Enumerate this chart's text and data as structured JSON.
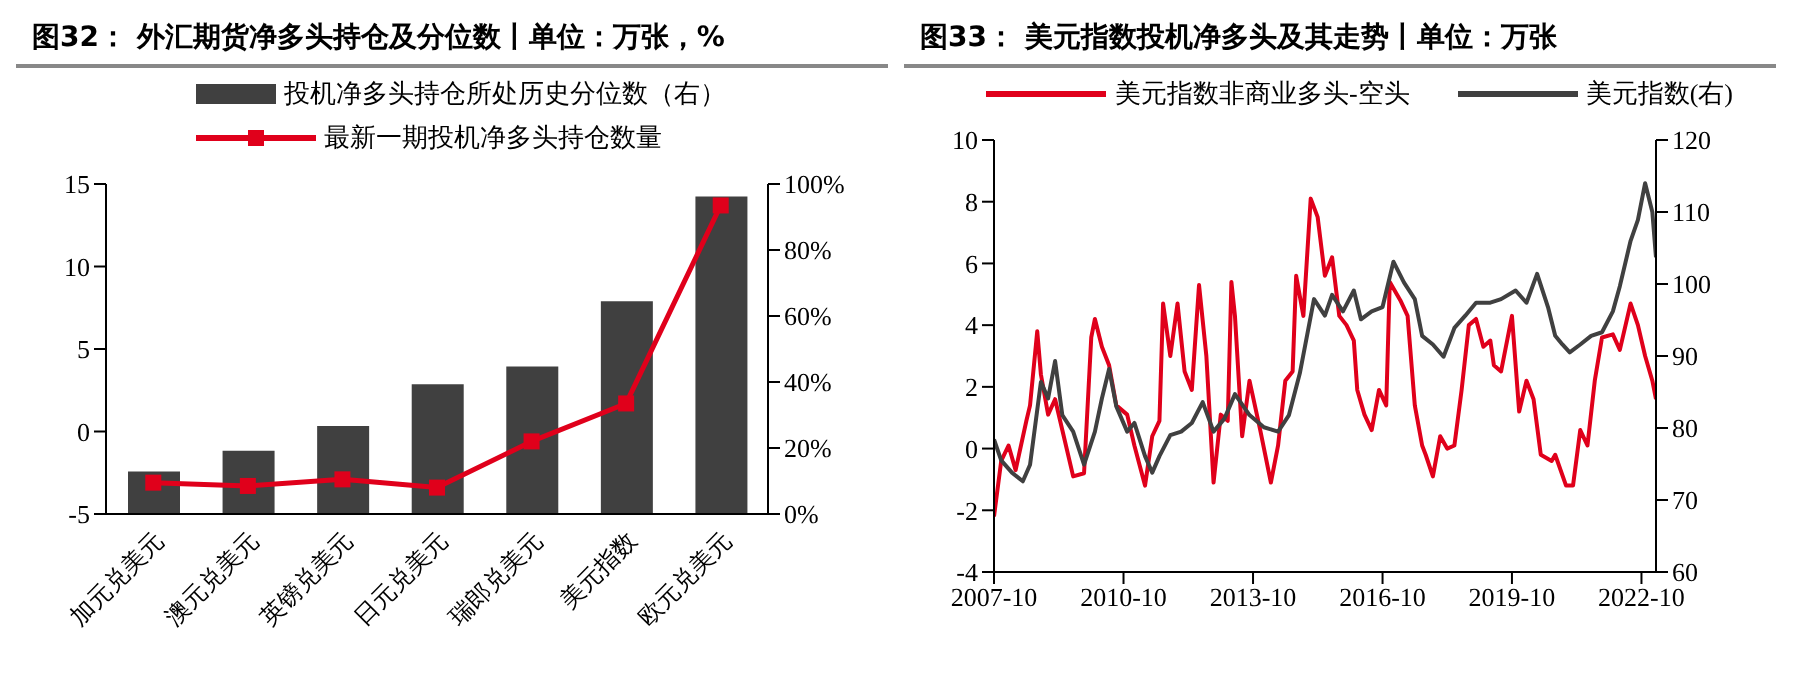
{
  "chart_data": [
    {
      "type": "bar",
      "title": "图32： 外汇期货净多头持仓及分位数丨单位：万张，%",
      "categories": [
        "加元兑美元",
        "澳元兑美元",
        "英镑兑美元",
        "日元兑美元",
        "瑞郎兑美元",
        "美元指数",
        "欧元兑美元"
      ],
      "series": [
        {
          "name": "投机净多头持仓所处历史分位数（右）",
          "type": "bar",
          "axis": "y2",
          "color": "#404040",
          "values": [
            12.9,
            19.2,
            26.7,
            39.3,
            44.7,
            64.5,
            96.2
          ]
        },
        {
          "name": "最新一期投机净多头持仓数量",
          "type": "line",
          "color": "#e0001b",
          "values": [
            -3.1,
            -3.3,
            -2.9,
            -3.4,
            -0.6,
            1.7,
            13.7
          ]
        }
      ],
      "ylim": [
        -5,
        15
      ],
      "yticks": [
        -5,
        0,
        5,
        10,
        15
      ],
      "y2lim": [
        0,
        100
      ],
      "y2ticks": [
        {
          "value": 0,
          "label": "0%"
        },
        {
          "value": 20,
          "label": "20%"
        },
        {
          "value": 40,
          "label": "40%"
        },
        {
          "value": 60,
          "label": "60%"
        },
        {
          "value": 80,
          "label": "80%"
        },
        {
          "value": 100,
          "label": "100%"
        }
      ],
      "marker": "square",
      "legend": "top",
      "grid": false
    },
    {
      "type": "line",
      "title": "图33： 美元指数投机净多头及其走势丨单位：万张",
      "series": [
        {
          "name": "美元指数非商业多头-空头",
          "color": "#e0001b",
          "x": [
            "2007-10",
            "2007-12",
            "2008-02",
            "2008-04",
            "2008-07",
            "2008-08",
            "2008-10",
            "2008-11",
            "2009-01",
            "2009-03",
            "2009-05",
            "2009-08",
            "2009-11",
            "2010-01",
            "2010-02",
            "2010-04",
            "2010-06",
            "2010-08",
            "2010-11",
            "2011-01",
            "2011-04",
            "2011-06",
            "2011-08",
            "2011-09",
            "2011-11",
            "2012-01",
            "2012-03",
            "2012-05",
            "2012-07",
            "2012-09",
            "2012-11",
            "2013-01",
            "2013-03",
            "2013-04",
            "2013-05",
            "2013-07",
            "2013-09",
            "2013-12",
            "2014-03",
            "2014-05",
            "2014-07",
            "2014-09",
            "2014-10",
            "2014-12",
            "2015-02",
            "2015-04",
            "2015-06",
            "2015-08",
            "2015-10",
            "2015-12",
            "2016-02",
            "2016-03",
            "2016-05",
            "2016-07",
            "2016-09",
            "2016-11",
            "2016-12",
            "2017-03",
            "2017-05",
            "2017-07",
            "2017-09",
            "2017-10",
            "2017-12",
            "2018-02",
            "2018-04",
            "2018-06",
            "2018-08",
            "2018-10",
            "2018-12",
            "2019-02",
            "2019-04",
            "2019-05",
            "2019-07",
            "2019-10",
            "2019-12",
            "2020-02",
            "2020-04",
            "2020-06",
            "2020-09",
            "2020-10",
            "2021-01",
            "2021-03",
            "2021-05",
            "2021-07",
            "2021-09",
            "2021-11",
            "2022-02",
            "2022-04",
            "2022-07",
            "2022-09",
            "2022-11",
            "2023-01",
            "2023-02"
          ],
          "values": [
            -2.2,
            -0.4,
            0.1,
            -0.7,
            0.9,
            1.4,
            3.8,
            2.4,
            1.1,
            1.6,
            0.6,
            -0.9,
            -0.8,
            3.6,
            4.2,
            3.3,
            2.7,
            1.4,
            1.1,
            0.1,
            -1.2,
            0.4,
            0.9,
            4.7,
            3.0,
            4.7,
            2.5,
            1.9,
            5.3,
            3.0,
            -1.1,
            1.1,
            0.9,
            5.4,
            4.3,
            0.4,
            2.2,
            0.6,
            -1.1,
            0.1,
            2.2,
            2.5,
            5.6,
            4.3,
            8.1,
            7.5,
            5.6,
            6.2,
            4.3,
            4.0,
            3.5,
            1.9,
            1.1,
            0.6,
            1.9,
            1.4,
            5.4,
            4.8,
            4.3,
            1.4,
            0.1,
            -0.2,
            -0.9,
            0.4,
            0.0,
            0.1,
            1.9,
            4.0,
            4.2,
            3.3,
            3.5,
            2.7,
            2.5,
            4.3,
            1.2,
            2.2,
            1.6,
            -0.2,
            -0.4,
            -0.2,
            -1.2,
            -1.2,
            0.6,
            0.1,
            2.2,
            3.6,
            3.7,
            3.2,
            4.7,
            4.0,
            3.0,
            2.2,
            1.6
          ]
        },
        {
          "name": "美元指数(右)",
          "color": "#404040",
          "axis": "y2",
          "x": [
            "2007-10",
            "2007-12",
            "2008-03",
            "2008-06",
            "2008-08",
            "2008-11",
            "2009-01",
            "2009-03",
            "2009-05",
            "2009-08",
            "2009-11",
            "2010-02",
            "2010-04",
            "2010-06",
            "2010-08",
            "2010-11",
            "2011-01",
            "2011-04",
            "2011-06",
            "2011-08",
            "2011-11",
            "2012-02",
            "2012-05",
            "2012-08",
            "2012-11",
            "2013-02",
            "2013-05",
            "2013-09",
            "2014-01",
            "2014-05",
            "2014-08",
            "2014-11",
            "2015-03",
            "2015-06",
            "2015-08",
            "2015-11",
            "2016-02",
            "2016-04",
            "2016-07",
            "2016-10",
            "2017-01",
            "2017-04",
            "2017-07",
            "2017-09",
            "2017-12",
            "2018-03",
            "2018-06",
            "2018-09",
            "2018-12",
            "2019-04",
            "2019-07",
            "2019-11",
            "2020-02",
            "2020-05",
            "2020-08",
            "2020-10",
            "2020-12",
            "2021-02",
            "2021-05",
            "2021-08",
            "2021-11",
            "2022-02",
            "2022-04",
            "2022-07",
            "2022-09",
            "2022-11",
            "2023-01",
            "2023-02"
          ],
          "values": [
            78.4,
            75.5,
            73.8,
            72.6,
            74.9,
            86.4,
            84.1,
            89.3,
            81.8,
            79.5,
            74.9,
            79.5,
            84.1,
            88.2,
            83.0,
            79.5,
            80.7,
            76.1,
            73.8,
            76.1,
            79.0,
            79.5,
            80.7,
            83.6,
            79.5,
            81.3,
            84.7,
            81.8,
            80.1,
            79.5,
            81.8,
            87.6,
            97.9,
            95.6,
            98.5,
            96.2,
            99.1,
            95.1,
            96.2,
            96.8,
            103.1,
            100.2,
            97.9,
            92.8,
            91.6,
            89.9,
            93.9,
            95.6,
            97.4,
            97.4,
            97.9,
            99.1,
            97.4,
            101.4,
            96.8,
            92.8,
            91.6,
            90.5,
            91.6,
            92.8,
            93.3,
            96.2,
            99.7,
            106.0,
            108.9,
            114.0,
            110.0,
            103.7
          ]
        }
      ],
      "xlim": [
        "2007-10",
        "2023-02"
      ],
      "xticks": [
        "2007-10",
        "2010-10",
        "2013-10",
        "2016-10",
        "2019-10",
        "2022-10"
      ],
      "ylim": [
        -4,
        10
      ],
      "yticks": [
        -4,
        -2,
        0,
        2,
        4,
        6,
        8,
        10
      ],
      "y2lim": [
        60,
        120
      ],
      "y2ticks": [
        60,
        70,
        80,
        90,
        100,
        110,
        120
      ],
      "marker": "none",
      "legend": "top",
      "grid": false
    }
  ]
}
